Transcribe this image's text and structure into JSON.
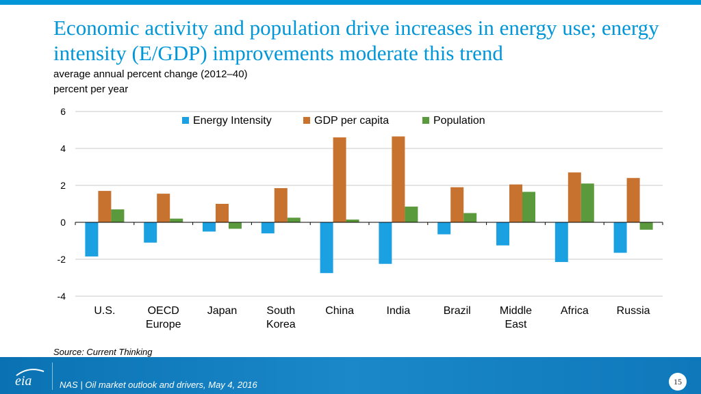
{
  "slide": {
    "title": "Economic activity and population drive increases in energy use; energy intensity (E/GDP) improvements moderate this trend",
    "subtitle": "average annual percent change (2012–40)",
    "source": "Source:  Current Thinking"
  },
  "footer": {
    "logo_text": "eia",
    "text": "NAS | Oil market outlook and drivers, May 4, 2016",
    "page_number": "15"
  },
  "colors": {
    "accent": "#0096d7",
    "energy_intensity": "#1ba1e2",
    "gdp_per_capita": "#c87230",
    "population": "#5b9a3c",
    "grid": "#c8c8c8"
  },
  "chart_data": {
    "type": "bar",
    "title": "",
    "ylabel": "percent per year",
    "xlabel": "",
    "ylim": [
      -4,
      6
    ],
    "yticks": [
      6,
      4,
      2,
      0,
      -2,
      -4
    ],
    "legend_position": "top-center",
    "grid": true,
    "categories": [
      [
        "U.S."
      ],
      [
        "OECD",
        "Europe"
      ],
      [
        "Japan"
      ],
      [
        "South",
        "Korea"
      ],
      [
        "China"
      ],
      [
        "India"
      ],
      [
        "Brazil"
      ],
      [
        "Middle",
        "East"
      ],
      [
        "Africa"
      ],
      [
        "Russia"
      ]
    ],
    "series": [
      {
        "name": "Energy Intensity",
        "color": "#1ba1e2",
        "values": [
          -1.85,
          -1.1,
          -0.5,
          -0.6,
          -2.75,
          -2.25,
          -0.65,
          -1.25,
          -2.15,
          -1.65
        ]
      },
      {
        "name": "GDP per capita",
        "color": "#c87230",
        "values": [
          1.7,
          1.55,
          1.0,
          1.85,
          4.6,
          4.65,
          1.9,
          2.05,
          2.7,
          2.4
        ]
      },
      {
        "name": "Population",
        "color": "#5b9a3c",
        "values": [
          0.7,
          0.2,
          -0.35,
          0.25,
          0.15,
          0.85,
          0.5,
          1.65,
          2.1,
          -0.4
        ]
      }
    ]
  }
}
